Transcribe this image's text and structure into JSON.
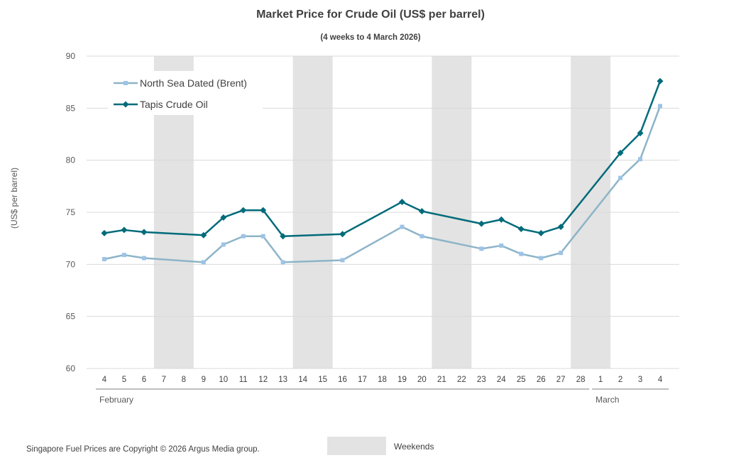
{
  "chart_data": {
    "type": "line",
    "title": "Market Price for Crude Oil (US$ per barrel)",
    "subtitle": "(4 weeks to 4 March 2026)",
    "ylabel": "(US$ per barrel)",
    "ylim": [
      60,
      90
    ],
    "yticks": [
      60,
      65,
      70,
      75,
      80,
      85,
      90
    ],
    "grid": true,
    "legend_position": "top-left",
    "categories": [
      "4",
      "5",
      "6",
      "7",
      "8",
      "9",
      "10",
      "11",
      "12",
      "13",
      "14",
      "15",
      "16",
      "17",
      "18",
      "19",
      "20",
      "21",
      "22",
      "23",
      "24",
      "25",
      "26",
      "27",
      "28",
      "1",
      "2",
      "3",
      "4"
    ],
    "month_labels": [
      {
        "label": "February",
        "start": 0,
        "end": 24
      },
      {
        "label": "March",
        "start": 25,
        "end": 28
      }
    ],
    "weekend_bands": [
      [
        3,
        4
      ],
      [
        10,
        11
      ],
      [
        17,
        18
      ],
      [
        24,
        25
      ]
    ],
    "series": [
      {
        "name": "North Sea Dated (Brent)",
        "color": "#8db4c8",
        "marker": "square",
        "marker_color": "#9dc3e6",
        "points": [
          [
            0,
            70.5
          ],
          [
            1,
            70.9
          ],
          [
            2,
            70.6
          ],
          [
            5,
            70.2
          ],
          [
            6,
            71.9
          ],
          [
            7,
            72.7
          ],
          [
            8,
            72.7
          ],
          [
            9,
            70.2
          ],
          [
            12,
            70.4
          ],
          [
            15,
            73.6
          ],
          [
            16,
            72.7
          ],
          [
            19,
            71.5
          ],
          [
            20,
            71.8
          ],
          [
            21,
            71.0
          ],
          [
            22,
            70.6
          ],
          [
            23,
            71.1
          ],
          [
            26,
            78.3
          ],
          [
            27,
            80.1
          ],
          [
            28,
            85.2
          ]
        ]
      },
      {
        "name": "Tapis Crude Oil",
        "color": "#006b7a",
        "marker": "diamond",
        "marker_color": "#006b7a",
        "points": [
          [
            0,
            73.0
          ],
          [
            1,
            73.3
          ],
          [
            2,
            73.1
          ],
          [
            5,
            72.8
          ],
          [
            6,
            74.5
          ],
          [
            7,
            75.2
          ],
          [
            8,
            75.2
          ],
          [
            9,
            72.7
          ],
          [
            12,
            72.9
          ],
          [
            15,
            76.0
          ],
          [
            16,
            75.1
          ],
          [
            19,
            73.9
          ],
          [
            20,
            74.3
          ],
          [
            21,
            73.4
          ],
          [
            22,
            73.0
          ],
          [
            23,
            73.6
          ],
          [
            26,
            80.7
          ],
          [
            27,
            82.6
          ],
          [
            28,
            87.6
          ]
        ]
      }
    ]
  },
  "footer": {
    "copyright": "Singapore Fuel Prices are Copyright © 2026 Argus Media group.",
    "weekend_legend_label": "Weekends",
    "weekend_color": "#e3e3e3"
  }
}
